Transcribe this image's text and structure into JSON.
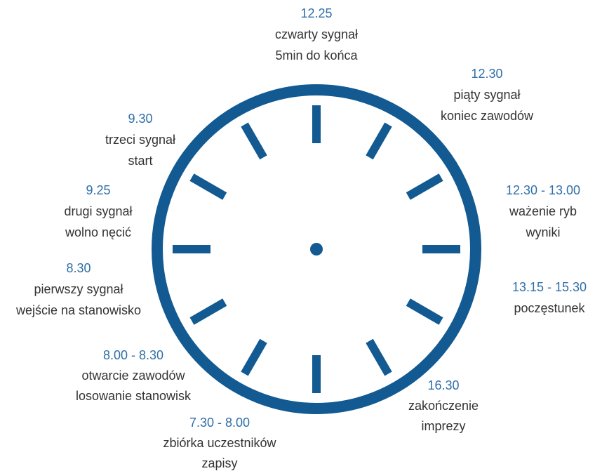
{
  "events": [
    {
      "time": "12.25",
      "lines": [
        "czwarty sygnał",
        "5min do końca"
      ]
    },
    {
      "time": "12.30",
      "lines": [
        "piąty sygnał",
        "koniec zawodów"
      ]
    },
    {
      "time": "9.30",
      "lines": [
        "trzeci sygnał",
        "start"
      ]
    },
    {
      "time": "9.25",
      "lines": [
        "drugi sygnał",
        "wolno nęcić"
      ]
    },
    {
      "time": "12.30 - 13.00",
      "lines": [
        "ważenie ryb",
        "wyniki"
      ]
    },
    {
      "time": "8.30",
      "lines": [
        "pierwszy sygnał",
        "wejście na stanowisko"
      ]
    },
    {
      "time": "13.15 - 15.30",
      "lines": [
        "poczęstunek"
      ]
    },
    {
      "time": "8.00 - 8.30",
      "lines": [
        "otwarcie zawodów",
        "losowanie stanowisk"
      ]
    },
    {
      "time": "16.30",
      "lines": [
        "zakończenie",
        "imprezy"
      ]
    },
    {
      "time": "7.30 - 8.00",
      "lines": [
        "zbiórka uczestników",
        "zapisy"
      ]
    }
  ]
}
